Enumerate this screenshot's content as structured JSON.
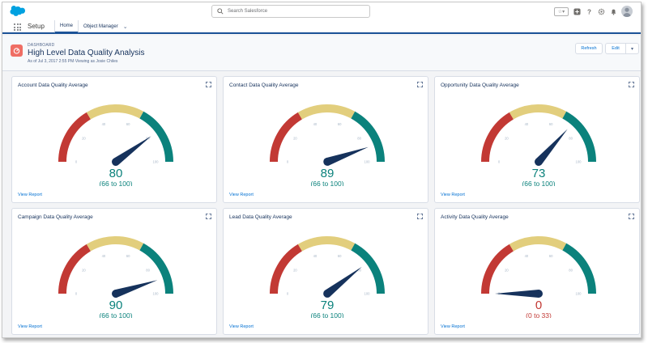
{
  "header": {
    "search_placeholder": "Search Salesforce",
    "icons": [
      "salesforce-cloud-logo",
      "search-icon",
      "favorites-icon",
      "add-icon",
      "help-icon",
      "gear-icon",
      "bell-icon",
      "avatar"
    ]
  },
  "nav": {
    "app_name": "Setup",
    "tabs": [
      {
        "label": "Home"
      },
      {
        "label": "Object Manager"
      }
    ]
  },
  "dashboard": {
    "type_label": "DASHBOARD",
    "title": "High Level Data Quality Analysis",
    "subtitle": "As of Jul 3, 2017 2:55 PM·Viewing as Josie Chiles",
    "buttons": {
      "refresh": "Refresh",
      "edit": "Edit"
    }
  },
  "colors": {
    "red": "#c23934",
    "yellow": "#e2ce7d",
    "teal": "#0b827c",
    "needle": "#16325c",
    "link": "#0070d2"
  },
  "gauge_scale": {
    "min": 0,
    "max": 100,
    "band_breaks": [
      33,
      66
    ],
    "tick_labels": [
      "0",
      "20",
      "40",
      "60",
      "80",
      "100"
    ]
  },
  "cards": [
    {
      "title": "Account Data Quality Average",
      "value": 80,
      "value_text": "80",
      "range_text": "(66 to 100)",
      "band": "teal",
      "link": "View Report"
    },
    {
      "title": "Contact Data Quality Average",
      "value": 89,
      "value_text": "89",
      "range_text": "(66 to 100)",
      "band": "teal",
      "link": "View Report"
    },
    {
      "title": "Opportunity Data Quality Average",
      "value": 73,
      "value_text": "73",
      "range_text": "(66 to 100)",
      "band": "teal",
      "link": "View Report"
    },
    {
      "title": "Campaign Data Quality Average",
      "value": 90,
      "value_text": "90",
      "range_text": "(66 to 100)",
      "band": "teal",
      "link": "View Report"
    },
    {
      "title": "Lead Data Quality Average",
      "value": 79,
      "value_text": "79",
      "range_text": "(66 to 100)",
      "band": "teal",
      "link": "View Report"
    },
    {
      "title": "Activity Data Quality Average",
      "value": 0,
      "value_text": "0",
      "range_text": "(0 to 33)",
      "band": "red",
      "link": "View Report"
    }
  ]
}
